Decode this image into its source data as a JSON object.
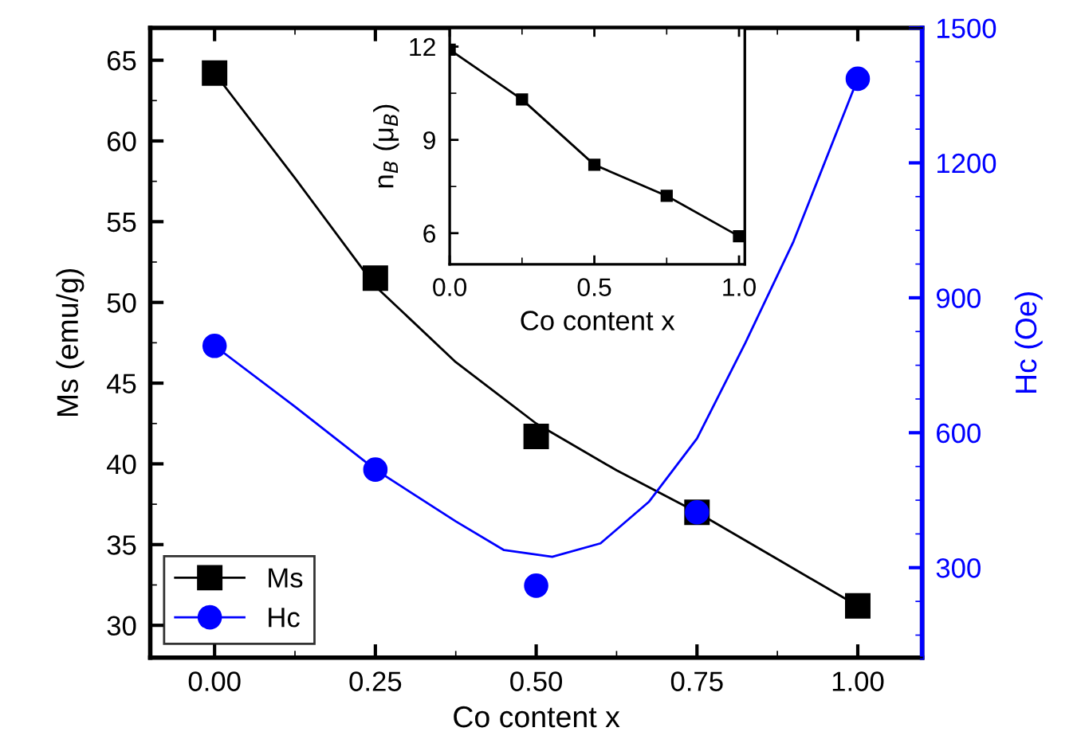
{
  "chart_data": [
    {
      "type": "scatter",
      "xlabel": "Co content x",
      "ylabel": "Ms (emu/g)",
      "y2label": "Hc (Oe)",
      "xlim": [
        -0.1,
        1.1
      ],
      "xticks": [
        {
          "value": 0,
          "label": "0.00"
        },
        {
          "value": 0.25,
          "label": "0.25"
        },
        {
          "value": 0.5,
          "label": "0.50"
        },
        {
          "value": 0.75,
          "label": "0.75"
        },
        {
          "value": 1,
          "label": "1.00"
        }
      ],
      "ylim": [
        28,
        67
      ],
      "yticks": [
        30,
        35,
        40,
        45,
        50,
        55,
        60,
        65
      ],
      "y2lim": [
        100,
        1500
      ],
      "y2ticks": [
        300,
        600,
        900,
        1200,
        1500
      ],
      "grid": false,
      "legend": "bottom left",
      "series": [
        {
          "name": "Ms",
          "type": "scatter",
          "marker": "square",
          "color": "#000000",
          "x": [
            0,
            0.25,
            0.5,
            0.75,
            1
          ],
          "values": [
            64.2,
            51.5,
            41.7,
            37.0,
            31.2
          ]
        },
        {
          "type": "line",
          "color": "#000000",
          "x": [
            0,
            0.125,
            0.25,
            0.375,
            0.5,
            0.625,
            0.75,
            0.875,
            1
          ],
          "values": [
            64.2,
            57.7,
            51.0,
            46.3,
            42.5,
            39.6,
            37.0,
            34.1,
            31.2
          ]
        },
        {
          "name": "Hc",
          "type": "scatter",
          "marker": "circle",
          "axis": "y2",
          "color": "#0000ff",
          "x": [
            0,
            0.25,
            0.5,
            0.75,
            1
          ],
          "values": [
            793,
            518,
            260,
            423,
            1387
          ]
        },
        {
          "type": "line",
          "axis": "y2",
          "color": "#0000ff",
          "x": [
            0,
            0.125,
            0.25,
            0.375,
            0.45,
            0.525,
            0.6,
            0.675,
            0.75,
            0.825,
            0.9,
            1
          ],
          "values": [
            793,
            658,
            518,
            403,
            339,
            324,
            354,
            446,
            587,
            799,
            1025,
            1387
          ]
        }
      ]
    },
    {
      "type": "line",
      "xlabel": "Co content x",
      "ylabel": "n$_{B}$ (μ$_{B}$)",
      "xlim": [
        0,
        1.02
      ],
      "xticks": [
        {
          "value": 0,
          "label": "0.0"
        },
        {
          "value": 0.5,
          "label": "0.5"
        },
        {
          "value": 1,
          "label": "1.0"
        }
      ],
      "ylim": [
        5,
        12.6
      ],
      "yticks": [
        6,
        9,
        12
      ],
      "grid": false,
      "marker": "square",
      "x": [
        0,
        0.25,
        0.5,
        0.75,
        1
      ],
      "series": [
        {
          "color": "#000000",
          "values": [
            11.9,
            10.3,
            8.2,
            7.2,
            5.9
          ]
        }
      ]
    }
  ]
}
